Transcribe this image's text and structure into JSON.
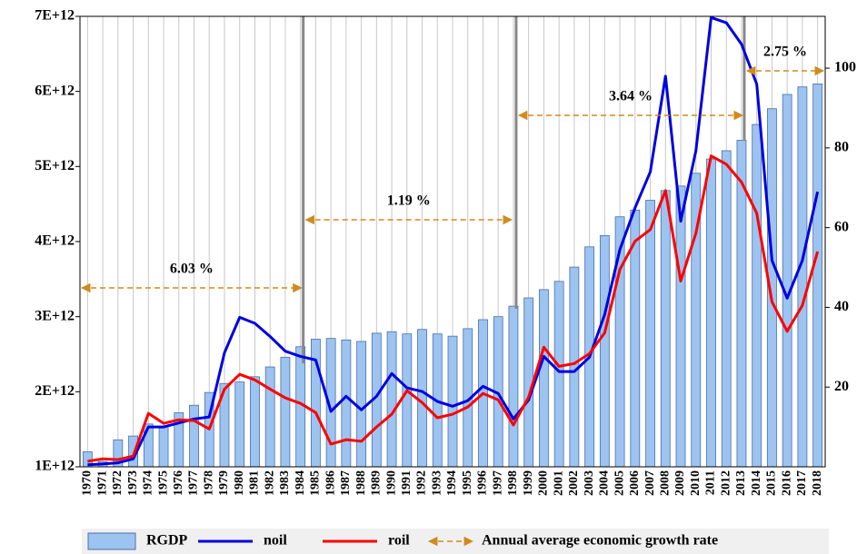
{
  "chart_data": {
    "type": "bar-line",
    "categories": [
      "1970",
      "1971",
      "1972",
      "1973",
      "1974",
      "1975",
      "1976",
      "1977",
      "1978",
      "1979",
      "1980",
      "1981",
      "1982",
      "1983",
      "1984",
      "1985",
      "1986",
      "1987",
      "1988",
      "1989",
      "1990",
      "1991",
      "1992",
      "1993",
      "1994",
      "1995",
      "1996",
      "1997",
      "1998",
      "1999",
      "2000",
      "2001",
      "2002",
      "2003",
      "2004",
      "2005",
      "2006",
      "2007",
      "2008",
      "2009",
      "2010",
      "2011",
      "2012",
      "2013",
      "2014",
      "2015",
      "2016",
      "2017",
      "2018"
    ],
    "series": [
      {
        "name": "RGDP",
        "type": "bar",
        "color": "#9dc3f0",
        "values": [
          1200000000000.0,
          1070000000000.0,
          1360000000000.0,
          1410000000000.0,
          1570000000000.0,
          1530000000000.0,
          1720000000000.0,
          1820000000000.0,
          1990000000000.0,
          2110000000000.0,
          2130000000000.0,
          2200000000000.0,
          2330000000000.0,
          2460000000000.0,
          2600000000000.0,
          2700000000000.0,
          2710000000000.0,
          2690000000000.0,
          2670000000000.0,
          2780000000000.0,
          2800000000000.0,
          2770000000000.0,
          2830000000000.0,
          2770000000000.0,
          2740000000000.0,
          2840000000000.0,
          2960000000000.0,
          3000000000000.0,
          3140000000000.0,
          3250000000000.0,
          3360000000000.0,
          3470000000000.0,
          3660000000000.0,
          3930000000000.0,
          4080000000000.0,
          4330000000000.0,
          4420000000000.0,
          4550000000000.0,
          4680000000000.0,
          4740000000000.0,
          4910000000000.0,
          5100000000000.0,
          5210000000000.0,
          5350000000000.0,
          5560000000000.0,
          5770000000000.0,
          5960000000000.0,
          6060000000000.0,
          6100000000000.0
        ]
      },
      {
        "name": "noil",
        "type": "line",
        "axis": "y2",
        "color": "#0000e0",
        "values": [
          0.5,
          0.7,
          1,
          2,
          10,
          10,
          11,
          12,
          12.5,
          28.6,
          37.5,
          36,
          32.7,
          29,
          27.7,
          26.8,
          13.9,
          17.7,
          14.3,
          17.7,
          23.4,
          19.8,
          18.9,
          16.4,
          15.2,
          16.6,
          20.2,
          18.4,
          12,
          16.8,
          27.7,
          23.9,
          23.9,
          27.5,
          38.2,
          54.5,
          65,
          74,
          98,
          61.6,
          79.3,
          112.7,
          111.4,
          106,
          96,
          51.8,
          42.3,
          51.8,
          69
        ]
      },
      {
        "name": "roil",
        "type": "line",
        "axis": "y2",
        "color": "#ff0000",
        "values": [
          1.4,
          2,
          1.8,
          2.7,
          13.4,
          10.9,
          11.8,
          11.6,
          9.5,
          19.5,
          23.2,
          21.8,
          19.5,
          17.3,
          15.9,
          13.6,
          5.7,
          6.8,
          6.4,
          10,
          13.2,
          19.1,
          16.1,
          12.3,
          13.2,
          15,
          18.4,
          16.8,
          10.5,
          17.5,
          30,
          25.2,
          25.9,
          28.4,
          33.6,
          49.5,
          56.6,
          59.5,
          69.3,
          46.6,
          58.6,
          78,
          75.9,
          71.4,
          63.6,
          41.4,
          34,
          40.5,
          54
        ]
      }
    ],
    "ylim": [
      1000000000000.0,
      7000000000000.0
    ],
    "yticks": [
      {
        "value": 1000000000000.0,
        "label": "1E+12"
      },
      {
        "value": 2000000000000.0,
        "label": "2E+12"
      },
      {
        "value": 3000000000000.0,
        "label": "3E+12"
      },
      {
        "value": 4000000000000.0,
        "label": "4E+12"
      },
      {
        "value": 5000000000000.0,
        "label": "5E+12"
      },
      {
        "value": 6000000000000.0,
        "label": "6E+12"
      },
      {
        "value": 7000000000000.0,
        "label": "7E+12"
      }
    ],
    "y2lim": [
      0,
      113
    ],
    "y2ticks": [
      20,
      40,
      60,
      80,
      100
    ],
    "grid": true,
    "annotations": [
      "6.03 %",
      "1.19 %",
      "3.64 %",
      "2.75 %"
    ],
    "arrow_legend": "Annual average economic growth rate",
    "arrow_color": "#d08a1e"
  }
}
